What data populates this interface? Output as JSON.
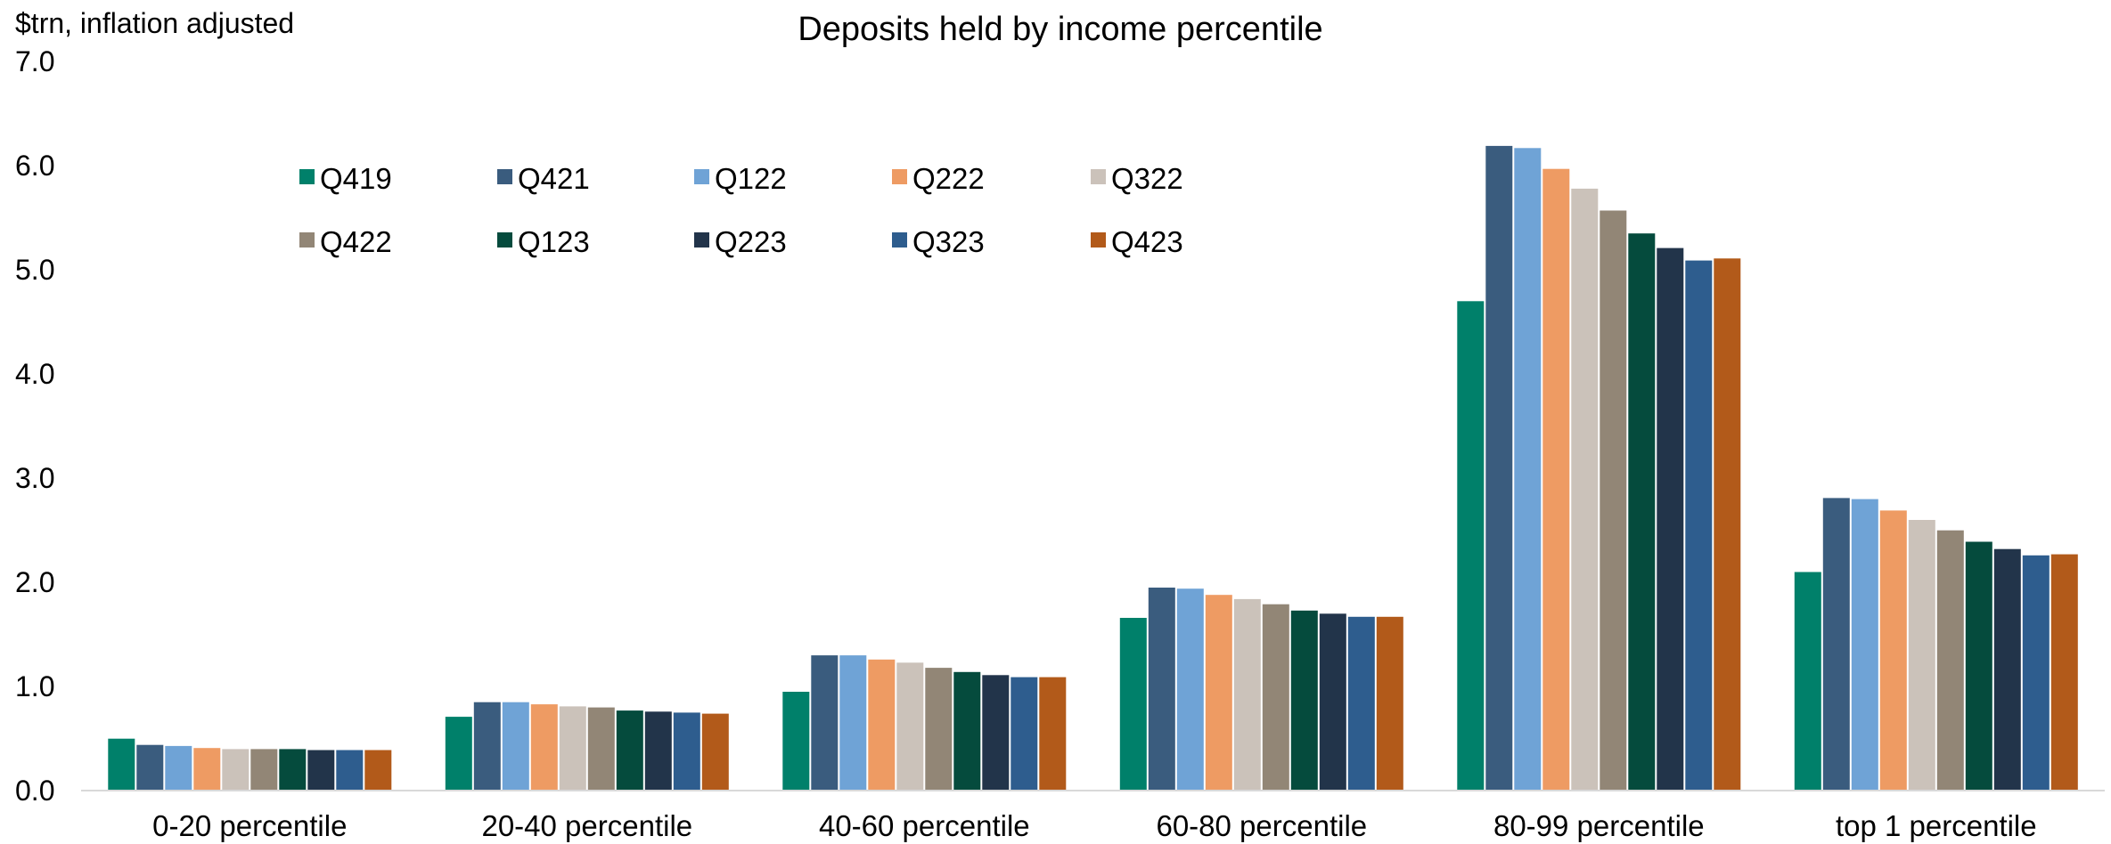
{
  "chart_data": {
    "type": "bar",
    "title": "Deposits held by income percentile",
    "ylabel": "$trn, inflation adjusted",
    "xlabel": "",
    "ylim": [
      0,
      7
    ],
    "yticks": [
      "0.0",
      "1.0",
      "2.0",
      "3.0",
      "4.0",
      "5.0",
      "6.0",
      "7.0"
    ],
    "grid": false,
    "legend_position": "top-left, inside plot, 2 rows",
    "categories": [
      "0-20 percentile",
      "20-40 percentile",
      "40-60 percentile",
      "60-80 percentile",
      "80-99 percentile",
      "top 1 percentile"
    ],
    "series": [
      {
        "name": "Q419",
        "color": "#00806A",
        "values": [
          0.49,
          0.7,
          0.94,
          1.65,
          4.69,
          2.09
        ]
      },
      {
        "name": "Q421",
        "color": "#3A5C7E",
        "values": [
          0.43,
          0.84,
          1.29,
          1.94,
          6.18,
          2.8
        ]
      },
      {
        "name": "Q122",
        "color": "#6FA3D6",
        "values": [
          0.42,
          0.84,
          1.29,
          1.93,
          6.16,
          2.79
        ]
      },
      {
        "name": "Q222",
        "color": "#EE9B63",
        "values": [
          0.4,
          0.82,
          1.25,
          1.87,
          5.96,
          2.68
        ]
      },
      {
        "name": "Q322",
        "color": "#CBC2BA",
        "values": [
          0.39,
          0.8,
          1.22,
          1.83,
          5.77,
          2.59
        ]
      },
      {
        "name": "Q422",
        "color": "#928676",
        "values": [
          0.39,
          0.79,
          1.17,
          1.78,
          5.56,
          2.49
        ]
      },
      {
        "name": "Q123",
        "color": "#054B3D",
        "values": [
          0.39,
          0.76,
          1.13,
          1.72,
          5.34,
          2.38
        ]
      },
      {
        "name": "Q223",
        "color": "#22344A",
        "values": [
          0.38,
          0.75,
          1.1,
          1.69,
          5.2,
          2.31
        ]
      },
      {
        "name": "Q323",
        "color": "#2E5D8E",
        "values": [
          0.38,
          0.74,
          1.08,
          1.66,
          5.08,
          2.25
        ]
      },
      {
        "name": "Q423",
        "color": "#B25A1A",
        "values": [
          0.38,
          0.73,
          1.08,
          1.66,
          5.1,
          2.26
        ]
      }
    ]
  }
}
